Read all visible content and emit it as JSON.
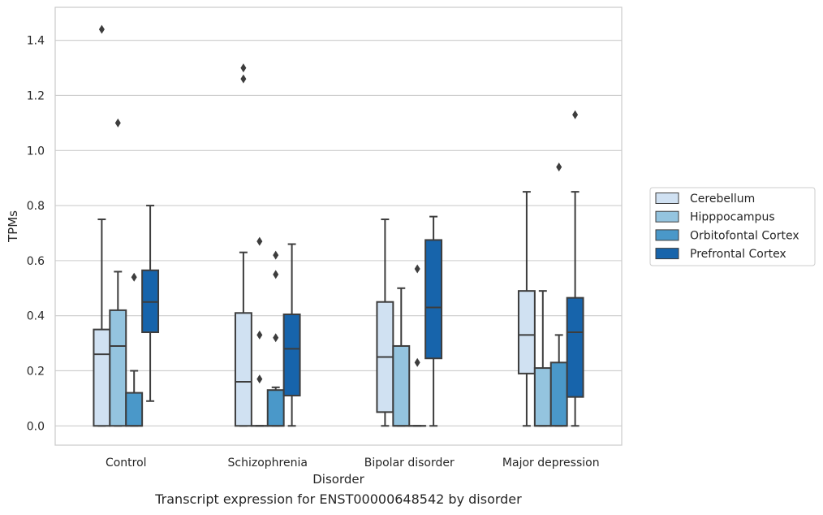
{
  "caption": "Transcript expression for ENST00000648542 by disorder",
  "chart_data": {
    "type": "boxplot",
    "xlabel": "Disorder",
    "ylabel": "TPMs",
    "ylim": [
      -0.07,
      1.52
    ],
    "yticks": [
      "0.0",
      "0.2",
      "0.4",
      "0.6",
      "0.8",
      "1.0",
      "1.2",
      "1.4"
    ],
    "ytick_values": [
      0.0,
      0.2,
      0.4,
      0.6,
      0.8,
      1.0,
      1.2,
      1.4
    ],
    "categories": [
      "Control",
      "Schizophrenia",
      "Bipolar disorder",
      "Major depression"
    ],
    "grid": "horizontal",
    "legend_position": "right",
    "series": [
      {
        "name": "Cerebellum",
        "color": "#d0e1f2",
        "boxes": [
          {
            "whislo": 0.0,
            "q1": 0.0,
            "med": 0.26,
            "q3": 0.35,
            "whishi": 0.75,
            "fliers": [
              1.44
            ]
          },
          {
            "whislo": 0.0,
            "q1": 0.0,
            "med": 0.16,
            "q3": 0.41,
            "whishi": 0.63,
            "fliers": [
              1.26,
              1.3
            ]
          },
          {
            "whislo": 0.0,
            "q1": 0.05,
            "med": 0.25,
            "q3": 0.45,
            "whishi": 0.75,
            "fliers": []
          },
          {
            "whislo": 0.0,
            "q1": 0.19,
            "med": 0.33,
            "q3": 0.49,
            "whishi": 0.85,
            "fliers": []
          }
        ]
      },
      {
        "name": "Hipppocampus",
        "color": "#94c4df",
        "boxes": [
          {
            "whislo": 0.0,
            "q1": 0.0,
            "med": 0.29,
            "q3": 0.42,
            "whishi": 0.56,
            "fliers": [
              1.1
            ]
          },
          {
            "whislo": 0.0,
            "q1": 0.0,
            "med": 0.0,
            "q3": 0.0,
            "whishi": 0.0,
            "fliers": [
              0.17,
              0.33,
              0.67
            ]
          },
          {
            "whislo": 0.0,
            "q1": 0.0,
            "med": 0.0,
            "q3": 0.29,
            "whishi": 0.5,
            "fliers": []
          },
          {
            "whislo": 0.0,
            "q1": 0.0,
            "med": 0.0,
            "q3": 0.21,
            "whishi": 0.49,
            "fliers": []
          }
        ]
      },
      {
        "name": "Orbitofontal Cortex",
        "color": "#4a98c9",
        "boxes": [
          {
            "whislo": 0.0,
            "q1": 0.0,
            "med": 0.0,
            "q3": 0.12,
            "whishi": 0.2,
            "fliers": [
              0.54
            ]
          },
          {
            "whislo": 0.0,
            "q1": 0.0,
            "med": 0.0,
            "q3": 0.13,
            "whishi": 0.14,
            "fliers": [
              0.32,
              0.55,
              0.62
            ]
          },
          {
            "whislo": 0.0,
            "q1": 0.0,
            "med": 0.0,
            "q3": 0.0,
            "whishi": 0.0,
            "fliers": [
              0.23,
              0.57
            ]
          },
          {
            "whislo": 0.0,
            "q1": 0.0,
            "med": 0.0,
            "q3": 0.23,
            "whishi": 0.33,
            "fliers": [
              0.94
            ]
          }
        ]
      },
      {
        "name": "Prefrontal Cortex",
        "color": "#1764ab",
        "boxes": [
          {
            "whislo": 0.09,
            "q1": 0.34,
            "med": 0.45,
            "q3": 0.565,
            "whishi": 0.8,
            "fliers": []
          },
          {
            "whislo": 0.0,
            "q1": 0.11,
            "med": 0.28,
            "q3": 0.405,
            "whishi": 0.66,
            "fliers": []
          },
          {
            "whislo": 0.0,
            "q1": 0.245,
            "med": 0.43,
            "q3": 0.675,
            "whishi": 0.76,
            "fliers": []
          },
          {
            "whislo": 0.0,
            "q1": 0.105,
            "med": 0.34,
            "q3": 0.465,
            "whishi": 0.85,
            "fliers": [
              1.13
            ]
          }
        ]
      }
    ]
  }
}
